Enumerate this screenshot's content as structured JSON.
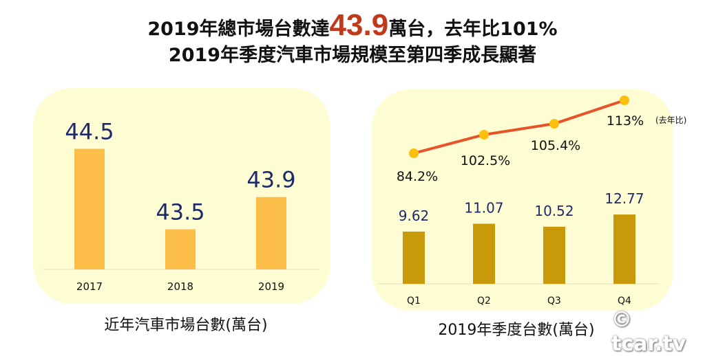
{
  "header": {
    "line1_pre": "2019年總市場台數達",
    "line1_highlight": "43.9",
    "line1_post": "萬台，去年比101%",
    "line2": "2019年季度汽車市場規模至第四季成長顯著"
  },
  "chart_data": [
    {
      "type": "bar",
      "categories": [
        "2017",
        "2018",
        "2019"
      ],
      "values": [
        44.5,
        43.5,
        43.9
      ],
      "data_labels": [
        "44.5",
        "43.5",
        "43.9"
      ],
      "title": "近年汽車市場台數(萬台)",
      "color": "#fdbe49",
      "label_color": "#1d2a6b"
    },
    {
      "type": "bar+line",
      "categories": [
        "Q1",
        "Q2",
        "Q3",
        "Q4"
      ],
      "series": [
        {
          "type": "bar",
          "values": [
            9.62,
            11.07,
            10.52,
            12.77
          ],
          "data_labels": [
            "9.62",
            "11.07",
            "10.52",
            "12.77"
          ],
          "color": "#c8990a"
        },
        {
          "type": "line",
          "name": "(去年比)",
          "values": [
            84.2,
            102.5,
            105.4,
            113
          ],
          "data_labels": [
            "84.2%",
            "102.5%",
            "105.4%",
            "113%"
          ],
          "color": "#e8542a",
          "marker_color": "#fbbf0e"
        }
      ],
      "title": "2019年季度台數(萬台)"
    }
  ],
  "watermark": "© tcar.tv",
  "colors": {
    "panel": "#fdfcd3",
    "highlight": "#c0391b"
  }
}
